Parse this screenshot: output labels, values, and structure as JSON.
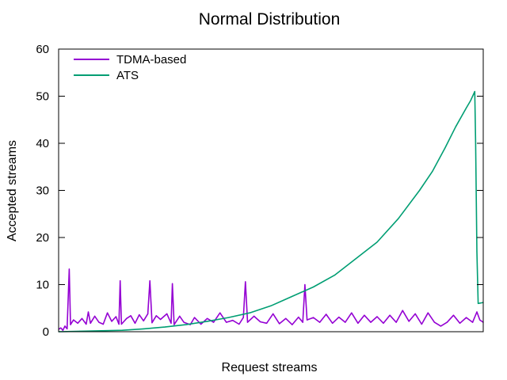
{
  "chart_data": {
    "type": "line",
    "title": "Normal Distribution",
    "xlabel": "Request streams",
    "ylabel": "Accepted streams",
    "xlim": [
      0,
      1
    ],
    "ylim": [
      0,
      60
    ],
    "y_ticks": [
      0,
      10,
      20,
      30,
      40,
      50,
      60
    ],
    "x_ticks_labeled": false,
    "grid": false,
    "legend_position": "top-left",
    "series": [
      {
        "name": "TDMA-based",
        "color": "#9400d3",
        "points": [
          [
            0,
            0.5
          ],
          [
            0.005,
            0.8
          ],
          [
            0.01,
            0.3
          ],
          [
            0.015,
            1.2
          ],
          [
            0.02,
            0.6
          ],
          [
            0.025,
            13.3
          ],
          [
            0.028,
            1.5
          ],
          [
            0.035,
            2.5
          ],
          [
            0.045,
            1.8
          ],
          [
            0.055,
            2.8
          ],
          [
            0.065,
            1.6
          ],
          [
            0.07,
            4.2
          ],
          [
            0.075,
            1.8
          ],
          [
            0.085,
            3.3
          ],
          [
            0.095,
            2.0
          ],
          [
            0.105,
            1.6
          ],
          [
            0.115,
            4.0
          ],
          [
            0.125,
            2.2
          ],
          [
            0.135,
            3.2
          ],
          [
            0.142,
            1.6
          ],
          [
            0.145,
            10.8
          ],
          [
            0.148,
            1.6
          ],
          [
            0.16,
            2.8
          ],
          [
            0.17,
            3.4
          ],
          [
            0.18,
            1.8
          ],
          [
            0.19,
            3.6
          ],
          [
            0.2,
            2.3
          ],
          [
            0.21,
            3.8
          ],
          [
            0.215,
            10.8
          ],
          [
            0.22,
            1.9
          ],
          [
            0.23,
            3.4
          ],
          [
            0.24,
            2.6
          ],
          [
            0.255,
            3.8
          ],
          [
            0.265,
            1.8
          ],
          [
            0.268,
            10.2
          ],
          [
            0.272,
            1.5
          ],
          [
            0.285,
            3.3
          ],
          [
            0.295,
            2.0
          ],
          [
            0.31,
            1.5
          ],
          [
            0.32,
            3.0
          ],
          [
            0.335,
            1.6
          ],
          [
            0.35,
            2.8
          ],
          [
            0.365,
            2.0
          ],
          [
            0.38,
            4.0
          ],
          [
            0.395,
            2.0
          ],
          [
            0.41,
            2.4
          ],
          [
            0.425,
            1.6
          ],
          [
            0.435,
            3.0
          ],
          [
            0.44,
            10.6
          ],
          [
            0.445,
            2.0
          ],
          [
            0.46,
            3.3
          ],
          [
            0.475,
            2.1
          ],
          [
            0.49,
            1.8
          ],
          [
            0.505,
            3.8
          ],
          [
            0.52,
            1.7
          ],
          [
            0.535,
            2.8
          ],
          [
            0.55,
            1.5
          ],
          [
            0.565,
            3.1
          ],
          [
            0.575,
            2.0
          ],
          [
            0.58,
            10.0
          ],
          [
            0.585,
            2.5
          ],
          [
            0.6,
            3.0
          ],
          [
            0.615,
            2.0
          ],
          [
            0.63,
            3.7
          ],
          [
            0.645,
            1.8
          ],
          [
            0.66,
            3.1
          ],
          [
            0.675,
            2.0
          ],
          [
            0.69,
            4.0
          ],
          [
            0.705,
            1.8
          ],
          [
            0.72,
            3.5
          ],
          [
            0.735,
            2.0
          ],
          [
            0.75,
            3.2
          ],
          [
            0.765,
            1.8
          ],
          [
            0.78,
            3.5
          ],
          [
            0.795,
            2.0
          ],
          [
            0.81,
            4.5
          ],
          [
            0.825,
            2.2
          ],
          [
            0.84,
            3.8
          ],
          [
            0.855,
            1.6
          ],
          [
            0.87,
            4.0
          ],
          [
            0.885,
            2.0
          ],
          [
            0.9,
            1.2
          ],
          [
            0.915,
            2.0
          ],
          [
            0.93,
            3.5
          ],
          [
            0.945,
            1.8
          ],
          [
            0.96,
            3.0
          ],
          [
            0.975,
            2.0
          ],
          [
            0.985,
            4.2
          ],
          [
            0.992,
            2.5
          ],
          [
            1.0,
            2.0
          ]
        ]
      },
      {
        "name": "ATS",
        "color": "#009e73",
        "points": [
          [
            0,
            0.0
          ],
          [
            0.05,
            0.1
          ],
          [
            0.1,
            0.2
          ],
          [
            0.15,
            0.3
          ],
          [
            0.2,
            0.6
          ],
          [
            0.25,
            1.0
          ],
          [
            0.3,
            1.5
          ],
          [
            0.35,
            2.2
          ],
          [
            0.4,
            3.0
          ],
          [
            0.45,
            4.0
          ],
          [
            0.5,
            5.5
          ],
          [
            0.55,
            7.5
          ],
          [
            0.6,
            9.5
          ],
          [
            0.65,
            12.0
          ],
          [
            0.7,
            15.5
          ],
          [
            0.75,
            19.0
          ],
          [
            0.8,
            24.0
          ],
          [
            0.85,
            30.0
          ],
          [
            0.88,
            34.0
          ],
          [
            0.91,
            39.0
          ],
          [
            0.935,
            43.5
          ],
          [
            0.96,
            47.5
          ],
          [
            0.97,
            49.0
          ],
          [
            0.98,
            51.0
          ],
          [
            0.982,
            40.0
          ],
          [
            0.985,
            17.0
          ],
          [
            0.988,
            6.0
          ],
          [
            1.0,
            6.2
          ]
        ]
      }
    ]
  }
}
